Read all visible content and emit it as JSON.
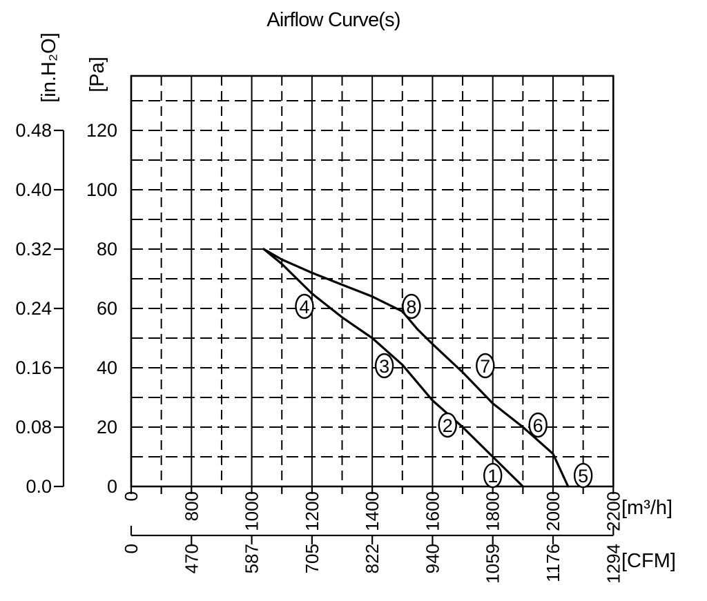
{
  "title": "Airflow Curve(s)",
  "chart_data": {
    "type": "line",
    "title": "Airflow Curve(s)",
    "x_axes": [
      {
        "id": "m3h",
        "unit_label": "[m³/h]",
        "ticks": [
          0,
          800,
          1000,
          1200,
          1400,
          1600,
          1800,
          2000,
          2200
        ],
        "note": "scale compressed between 0 and 800; 200 m³/h per gridline from 800 to 2200"
      },
      {
        "id": "cfm",
        "unit_label": "[CFM]",
        "ticks": [
          0,
          470,
          587,
          705,
          822,
          940,
          1059,
          1176,
          1294
        ],
        "note": "ticks aligned with m³/h ticks"
      }
    ],
    "y_axes": [
      {
        "id": "pa",
        "unit_label": "[Pa]",
        "ticks": [
          120,
          100,
          80,
          60,
          40,
          20,
          0
        ],
        "minor_step": 10,
        "extra_minor": 130
      },
      {
        "id": "inh2o",
        "unit_label": "[in.H₂O]",
        "ticks": [
          "0.48",
          "0.40",
          "0.32",
          "0.24",
          "0.16",
          "0.08",
          "0.0"
        ]
      }
    ],
    "grid": "horizontal dashed every 10 Pa; vertical solid at major flow ticks, dashed at interval midpoints",
    "colors": {
      "foreground": "#000000",
      "background": "#ffffff"
    },
    "series": [
      {
        "name": "curve-1-2-3-4",
        "points": [
          [
            1040,
            80
          ],
          [
            1100,
            75
          ],
          [
            1200,
            65
          ],
          [
            1300,
            57
          ],
          [
            1400,
            50
          ],
          [
            1500,
            41
          ],
          [
            1600,
            29
          ],
          [
            1700,
            20
          ],
          [
            1800,
            10
          ],
          [
            1900,
            0
          ]
        ],
        "point_labels": [
          {
            "text": "4",
            "x": 1175,
            "pa": 60
          },
          {
            "text": "3",
            "x": 1440,
            "pa": 40
          },
          {
            "text": "2",
            "x": 1650,
            "pa": 20
          },
          {
            "text": "1",
            "x": 1800,
            "pa": 3
          }
        ]
      },
      {
        "name": "curve-5-6-7-8",
        "points": [
          [
            1040,
            80
          ],
          [
            1100,
            76.5
          ],
          [
            1200,
            72
          ],
          [
            1300,
            68
          ],
          [
            1400,
            64
          ],
          [
            1500,
            59
          ],
          [
            1550,
            53
          ],
          [
            1600,
            48
          ],
          [
            1700,
            38.5
          ],
          [
            1800,
            28
          ],
          [
            1900,
            20
          ],
          [
            2000,
            11
          ],
          [
            2050,
            0
          ]
        ],
        "point_labels": [
          {
            "text": "8",
            "x": 1530,
            "pa": 60
          },
          {
            "text": "7",
            "x": 1775,
            "pa": 40
          },
          {
            "text": "6",
            "x": 1950,
            "pa": 20
          },
          {
            "text": "5",
            "x": 2100,
            "pa": 3
          }
        ]
      }
    ]
  }
}
